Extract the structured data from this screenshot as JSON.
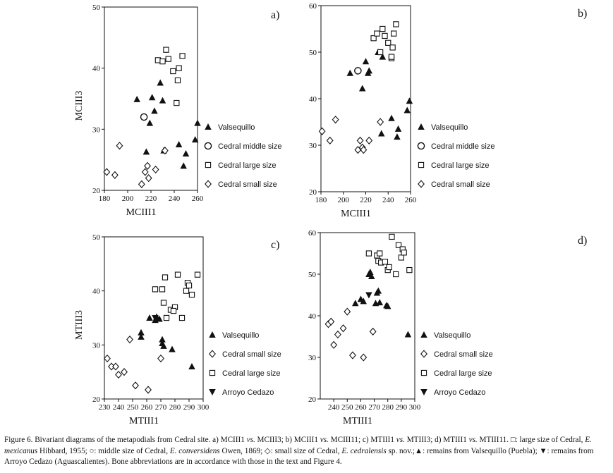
{
  "chart_data": [
    {
      "type": "scatter",
      "panel_label": "a)",
      "xlabel": "MCIII1",
      "ylabel": "MCIII3",
      "xlim": [
        180,
        260
      ],
      "ylim": [
        20,
        50
      ],
      "xticks": [
        180,
        200,
        220,
        240,
        260
      ],
      "yticks": [
        20,
        30,
        40,
        50
      ],
      "series": [
        {
          "name": "Valsequillo",
          "marker": "triangle-up",
          "points": [
            [
              208,
              34.9
            ],
            [
              216,
              26.3
            ],
            [
              219,
              31
            ],
            [
              221,
              35.2
            ],
            [
              223,
              33
            ],
            [
              228,
              37.6
            ],
            [
              230,
              34.7
            ],
            [
              231,
              26.5
            ],
            [
              244,
              27.5
            ],
            [
              248,
              24
            ],
            [
              250,
              26
            ],
            [
              258,
              28.3
            ],
            [
              260,
              31
            ]
          ]
        },
        {
          "name": "Cedral middle size",
          "marker": "circle",
          "points": [
            [
              214,
              32
            ]
          ]
        },
        {
          "name": "Cedral large size",
          "marker": "square",
          "points": [
            [
              226,
              41.3
            ],
            [
              230,
              41.1
            ],
            [
              233,
              43
            ],
            [
              235,
              41.5
            ],
            [
              239,
              39.5
            ],
            [
              242,
              34.3
            ],
            [
              243,
              38
            ],
            [
              244,
              40
            ],
            [
              247,
              42
            ]
          ]
        },
        {
          "name": "Cedral small size",
          "marker": "diamond",
          "points": [
            [
              182,
              23
            ],
            [
              189,
              22.5
            ],
            [
              193,
              27.3
            ],
            [
              212,
              21
            ],
            [
              215,
              23
            ],
            [
              217,
              24
            ],
            [
              218,
              22
            ],
            [
              224,
              23.4
            ],
            [
              232,
              26.5
            ]
          ]
        }
      ]
    },
    {
      "type": "scatter",
      "panel_label": "b)",
      "xlabel": "MCIII1",
      "ylabel": "MCIII11",
      "xlim": [
        180,
        260
      ],
      "ylim": [
        20,
        60
      ],
      "xticks": [
        180,
        200,
        220,
        240,
        260
      ],
      "yticks": [
        20,
        30,
        40,
        50,
        60
      ],
      "series": [
        {
          "name": "Valsequillo",
          "marker": "triangle-up",
          "points": [
            [
              206,
              45.5
            ],
            [
              217,
              42.2
            ],
            [
              220,
              48
            ],
            [
              222,
              45.5
            ],
            [
              223,
              46
            ],
            [
              231,
              50
            ],
            [
              235,
              49
            ],
            [
              234,
              32.5
            ],
            [
              243,
              35.8
            ],
            [
              249,
              33.5
            ],
            [
              248,
              31.8
            ],
            [
              257,
              37.5
            ],
            [
              259,
              39.5
            ]
          ]
        },
        {
          "name": "Cedral middle size",
          "marker": "circle",
          "points": [
            [
              213,
              46
            ]
          ]
        },
        {
          "name": "Cedral large size",
          "marker": "square",
          "points": [
            [
              227,
              53
            ],
            [
              230,
              54
            ],
            [
              233,
              50
            ],
            [
              235,
              55
            ],
            [
              237,
              53.5
            ],
            [
              240,
              52
            ],
            [
              243,
              48.7
            ],
            [
              244,
              51
            ],
            [
              245,
              54
            ],
            [
              247,
              56
            ],
            [
              243,
              49
            ]
          ]
        },
        {
          "name": "Cedral small size",
          "marker": "diamond",
          "points": [
            [
              181,
              33
            ],
            [
              188,
              31
            ],
            [
              193,
              35.5
            ],
            [
              213,
              29
            ],
            [
              215,
              31
            ],
            [
              217,
              29.5
            ],
            [
              218,
              29
            ],
            [
              223,
              31
            ],
            [
              233,
              35
            ]
          ]
        }
      ]
    },
    {
      "type": "scatter",
      "panel_label": "c)",
      "xlabel": "MTIII1",
      "ylabel": "MTIII3",
      "xlim": [
        230,
        300
      ],
      "ylim": [
        20,
        50
      ],
      "xticks": [
        230,
        240,
        250,
        260,
        270,
        280,
        290,
        300
      ],
      "yticks": [
        20,
        30,
        40,
        50
      ],
      "series": [
        {
          "name": "Valsequillo",
          "marker": "triangle-up",
          "points": [
            [
              256,
              31.5
            ],
            [
              256,
              32.3
            ],
            [
              262,
              35
            ],
            [
              266,
              34.6
            ],
            [
              267,
              35.2
            ],
            [
              269,
              34.8
            ],
            [
              271,
              31
            ],
            [
              271,
              30.3
            ],
            [
              272,
              29.8
            ],
            [
              278,
              29.2
            ],
            [
              292,
              26
            ]
          ]
        },
        {
          "name": "Cedral small size",
          "marker": "diamond",
          "points": [
            [
              232,
              27.5
            ],
            [
              235,
              26
            ],
            [
              238,
              26
            ],
            [
              240,
              24.5
            ],
            [
              244,
              25
            ],
            [
              248,
              31
            ],
            [
              252,
              22.5
            ],
            [
              261,
              21.7
            ],
            [
              270,
              27.5
            ]
          ]
        },
        {
          "name": "Cedral large size",
          "marker": "square",
          "points": [
            [
              266,
              40.3
            ],
            [
              271,
              40.3
            ],
            [
              272,
              37.8
            ],
            [
              273,
              42.5
            ],
            [
              274,
              35
            ],
            [
              277,
              36.5
            ],
            [
              280,
              37
            ],
            [
              282,
              43
            ],
            [
              285,
              35
            ],
            [
              288,
              40
            ],
            [
              289,
              41.5
            ],
            [
              290,
              41
            ],
            [
              292,
              39.3
            ],
            [
              296,
              43
            ],
            [
              279,
              36.3
            ]
          ]
        },
        {
          "name": "Arroyo Cedazo",
          "marker": "triangle-down",
          "points": [
            [
              266,
              35
            ]
          ]
        }
      ]
    },
    {
      "type": "scatter",
      "panel_label": "d)",
      "xlabel": "MTIII1",
      "ylabel": "MTIII11",
      "xlim": [
        230,
        300
      ],
      "ylim": [
        20,
        60
      ],
      "xticks": [
        240,
        250,
        260,
        270,
        280,
        290,
        300
      ],
      "yticks": [
        20,
        30,
        40,
        50,
        60
      ],
      "series": [
        {
          "name": "Valsequillo",
          "marker": "triangle-up",
          "points": [
            [
              256,
              43
            ],
            [
              260,
              44
            ],
            [
              262,
              43.5
            ],
            [
              266,
              50
            ],
            [
              267,
              50.5
            ],
            [
              268,
              49.5
            ],
            [
              271,
              43
            ],
            [
              272,
              45.5
            ],
            [
              273,
              46
            ],
            [
              274,
              43.2
            ],
            [
              279,
              42.5
            ],
            [
              280,
              42.3
            ],
            [
              295,
              35.5
            ]
          ]
        },
        {
          "name": "Cedral small size",
          "marker": "diamond",
          "points": [
            [
              236,
              38
            ],
            [
              238,
              38.6
            ],
            [
              240,
              33
            ],
            [
              243,
              35.5
            ],
            [
              247,
              37
            ],
            [
              250,
              41
            ],
            [
              254,
              30.5
            ],
            [
              262,
              30
            ],
            [
              269,
              36.2
            ]
          ]
        },
        {
          "name": "Cedral large size",
          "marker": "square",
          "points": [
            [
              266,
              55
            ],
            [
              272,
              54.5
            ],
            [
              273,
              53.2
            ],
            [
              274,
              55
            ],
            [
              275,
              52.8
            ],
            [
              278,
              53
            ],
            [
              280,
              51
            ],
            [
              281,
              51.7
            ],
            [
              283,
              59
            ],
            [
              286,
              50
            ],
            [
              288,
              57
            ],
            [
              290,
              54
            ],
            [
              291,
              56
            ],
            [
              292,
              55.2
            ],
            [
              296,
              51
            ]
          ]
        },
        {
          "name": "Arroyo Cedazo",
          "marker": "triangle-down",
          "points": [
            [
              266,
              45
            ]
          ]
        }
      ]
    }
  ],
  "caption": {
    "p1": "Figure 6. Bivariant diagrams of the metapodials from Cedral site. a) MCIII1 ",
    "vs1": "vs.",
    "p2": " MCIII3; b) MCIII1 ",
    "vs2": "vs.",
    "p3": " MCIII11; c) MTIII1 ",
    "vs3": "vs.",
    "p4": " MTIII3; d) MTIII1 ",
    "vs4": "vs.",
    "p5": " MTIII11. □: large size of Cedral, ",
    "sp1": "E. mexicanus",
    "p6": " Hibbard, 1955; ○: middle size of Cedral, ",
    "sp2": "E. conversidens",
    "p7": " Owen, 1869; ◇: small size of Cedral, ",
    "sp3": "E. cedralensis",
    "p8": " sp. nov.;▲: remains from Valsequillo (Puebla); ▼: remains from Arroyo Cedazo (Aguascalientes). Bone abbreviations are in accordance with those in the text and Figure 4."
  }
}
